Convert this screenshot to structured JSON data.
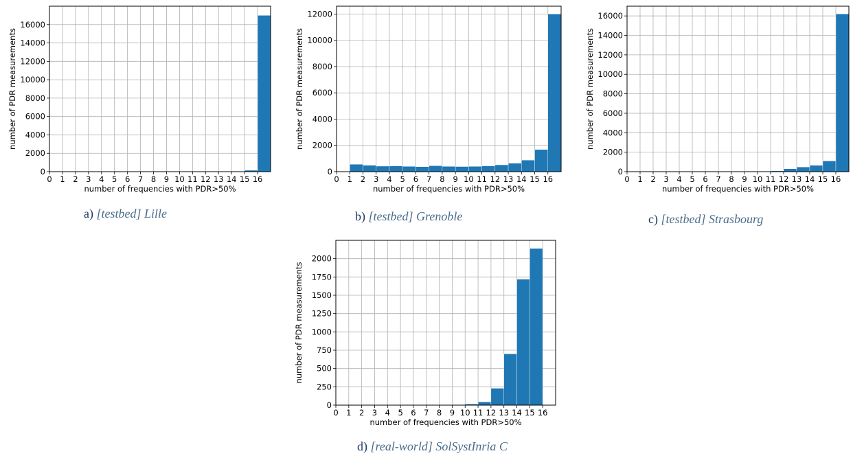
{
  "figure": {
    "bar_color": "#1f77b4",
    "grid_color": "#b0b0b0",
    "captions": [
      {
        "letter": "a)",
        "text": "[testbed] Lille"
      },
      {
        "letter": "b)",
        "text": "[testbed] Grenoble"
      },
      {
        "letter": "c)",
        "text": "[testbed] Strasbourg"
      },
      {
        "letter": "d)",
        "text": "[real-world] SolSystInria C"
      }
    ]
  },
  "chart_data": [
    {
      "type": "bar",
      "xlabel": "number of frequencies with PDR>50%",
      "ylabel": "number of PDR measurements",
      "xlim": [
        0,
        17
      ],
      "ylim": [
        0,
        18000
      ],
      "xticks": [
        0,
        1,
        2,
        3,
        4,
        5,
        6,
        7,
        8,
        9,
        10,
        11,
        12,
        13,
        14,
        15,
        16
      ],
      "yticks": [
        0,
        2000,
        4000,
        6000,
        8000,
        10000,
        12000,
        14000,
        16000
      ],
      "grid": true,
      "x": [
        15,
        16
      ],
      "values": [
        150,
        17000
      ]
    },
    {
      "type": "bar",
      "xlabel": "number of frequencies with PDR>50%",
      "ylabel": "number of PDR measurements",
      "xlim": [
        0,
        17
      ],
      "ylim": [
        0,
        12600
      ],
      "xticks": [
        0,
        1,
        2,
        3,
        4,
        5,
        6,
        7,
        8,
        9,
        10,
        11,
        12,
        13,
        14,
        15,
        16
      ],
      "yticks": [
        0,
        2000,
        4000,
        6000,
        8000,
        10000,
        12000
      ],
      "grid": true,
      "x": [
        1,
        2,
        3,
        4,
        5,
        6,
        7,
        8,
        9,
        10,
        11,
        12,
        13,
        14,
        15,
        16
      ],
      "values": [
        560,
        490,
        420,
        430,
        400,
        380,
        450,
        400,
        390,
        400,
        440,
        520,
        640,
        880,
        1690,
        12000
      ]
    },
    {
      "type": "bar",
      "xlabel": "number of frequencies with PDR>50%",
      "ylabel": "number of PDR measurements",
      "xlim": [
        0,
        17
      ],
      "ylim": [
        0,
        17000
      ],
      "xticks": [
        0,
        1,
        2,
        3,
        4,
        5,
        6,
        7,
        8,
        9,
        10,
        11,
        12,
        13,
        14,
        15,
        16
      ],
      "yticks": [
        0,
        2000,
        4000,
        6000,
        8000,
        10000,
        12000,
        14000,
        16000
      ],
      "grid": true,
      "x": [
        10,
        11,
        12,
        13,
        14,
        15,
        16
      ],
      "values": [
        30,
        80,
        300,
        480,
        650,
        1100,
        16200
      ]
    },
    {
      "type": "bar",
      "xlabel": "number of frequencies with PDR>50%",
      "ylabel": "number of PDR measurements",
      "xlim": [
        0,
        17
      ],
      "ylim": [
        0,
        2250
      ],
      "xticks": [
        0,
        1,
        2,
        3,
        4,
        5,
        6,
        7,
        8,
        9,
        10,
        11,
        12,
        13,
        14,
        15,
        16
      ],
      "yticks": [
        0,
        250,
        500,
        750,
        1000,
        1250,
        1500,
        1750,
        2000
      ],
      "grid": true,
      "x": [
        2,
        4,
        5,
        6,
        8,
        9,
        10,
        11,
        12,
        13,
        14,
        15
      ],
      "values": [
        5,
        4,
        4,
        3,
        4,
        5,
        15,
        45,
        230,
        700,
        1720,
        2140
      ]
    }
  ]
}
